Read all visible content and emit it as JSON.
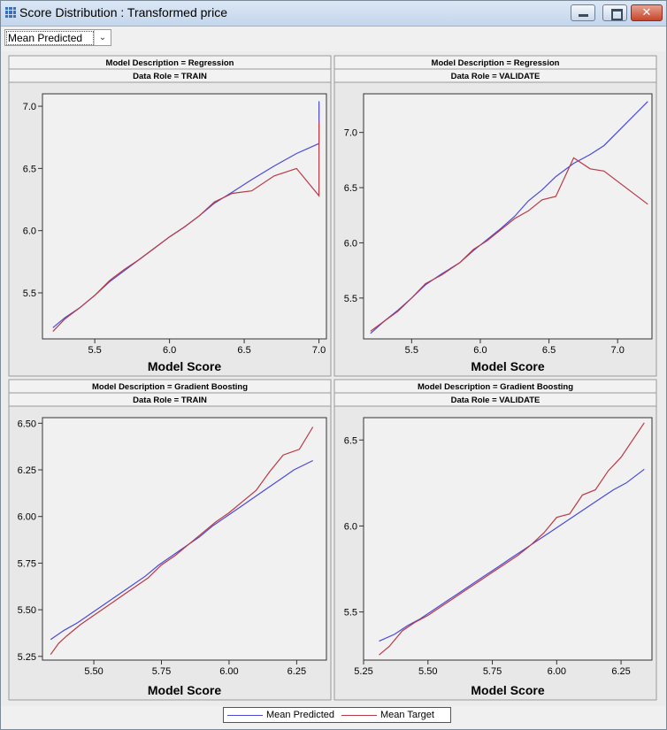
{
  "window": {
    "title": "Score Distribution : Transformed price",
    "close_label": "✕"
  },
  "toolbar": {
    "dropdown_value": "Mean Predicted"
  },
  "colors": {
    "predicted": "#4a4ad6",
    "target": "#b83a46"
  },
  "legend": {
    "predicted_label": "Mean Predicted",
    "target_label": "Mean Target"
  },
  "chart_data": [
    {
      "type": "line",
      "header1": "Model Description = Regression",
      "header2": "Data Role = TRAIN",
      "xlabel": "Model Score",
      "xlim": [
        5.15,
        7.05
      ],
      "ylim": [
        5.13,
        7.1
      ],
      "xticks": [
        "5.5",
        "6.0",
        "6.5",
        "7.0"
      ],
      "yticks": [
        "5.5",
        "6.0",
        "6.5",
        "7.0"
      ],
      "series": [
        {
          "name": "Mean Predicted",
          "points": [
            [
              5.22,
              5.22
            ],
            [
              5.3,
              5.3
            ],
            [
              5.4,
              5.38
            ],
            [
              5.5,
              5.48
            ],
            [
              5.6,
              5.59
            ],
            [
              5.7,
              5.68
            ],
            [
              5.8,
              5.77
            ],
            [
              5.9,
              5.86
            ],
            [
              6.0,
              5.95
            ],
            [
              6.1,
              6.03
            ],
            [
              6.2,
              6.12
            ],
            [
              6.3,
              6.22
            ],
            [
              6.42,
              6.31
            ],
            [
              6.55,
              6.41
            ],
            [
              6.7,
              6.52
            ],
            [
              6.85,
              6.62
            ],
            [
              7.0,
              6.7
            ],
            [
              7.0,
              7.04
            ]
          ]
        },
        {
          "name": "Mean Target",
          "points": [
            [
              5.22,
              5.19
            ],
            [
              5.3,
              5.29
            ],
            [
              5.4,
              5.38
            ],
            [
              5.5,
              5.48
            ],
            [
              5.6,
              5.6
            ],
            [
              5.7,
              5.69
            ],
            [
              5.8,
              5.77
            ],
            [
              5.9,
              5.86
            ],
            [
              6.0,
              5.95
            ],
            [
              6.1,
              6.03
            ],
            [
              6.2,
              6.12
            ],
            [
              6.3,
              6.23
            ],
            [
              6.42,
              6.3
            ],
            [
              6.55,
              6.32
            ],
            [
              6.7,
              6.44
            ],
            [
              6.85,
              6.5
            ],
            [
              7.0,
              6.28
            ],
            [
              7.0,
              6.88
            ]
          ]
        }
      ]
    },
    {
      "type": "line",
      "header1": "Model Description = Regression",
      "header2": "Data Role = VALIDATE",
      "xlabel": "Model Score",
      "xlim": [
        5.15,
        7.25
      ],
      "ylim": [
        5.13,
        7.35
      ],
      "xticks": [
        "5.5",
        "6.0",
        "6.5",
        "7.0"
      ],
      "yticks": [
        "5.5",
        "6.0",
        "6.5",
        "7.0"
      ],
      "series": [
        {
          "name": "Mean Predicted",
          "points": [
            [
              5.2,
              5.18
            ],
            [
              5.3,
              5.29
            ],
            [
              5.4,
              5.39
            ],
            [
              5.5,
              5.5
            ],
            [
              5.6,
              5.62
            ],
            [
              5.72,
              5.72
            ],
            [
              5.85,
              5.82
            ],
            [
              5.95,
              5.93
            ],
            [
              6.05,
              6.03
            ],
            [
              6.15,
              6.13
            ],
            [
              6.25,
              6.24
            ],
            [
              6.35,
              6.38
            ],
            [
              6.45,
              6.48
            ],
            [
              6.55,
              6.6
            ],
            [
              6.68,
              6.72
            ],
            [
              6.8,
              6.8
            ],
            [
              6.9,
              6.88
            ],
            [
              7.22,
              7.28
            ]
          ]
        },
        {
          "name": "Mean Target",
          "points": [
            [
              5.2,
              5.2
            ],
            [
              5.3,
              5.29
            ],
            [
              5.4,
              5.38
            ],
            [
              5.5,
              5.5
            ],
            [
              5.6,
              5.63
            ],
            [
              5.72,
              5.71
            ],
            [
              5.85,
              5.82
            ],
            [
              5.95,
              5.94
            ],
            [
              6.05,
              6.02
            ],
            [
              6.15,
              6.12
            ],
            [
              6.25,
              6.22
            ],
            [
              6.35,
              6.29
            ],
            [
              6.45,
              6.39
            ],
            [
              6.55,
              6.42
            ],
            [
              6.68,
              6.77
            ],
            [
              6.8,
              6.67
            ],
            [
              6.9,
              6.65
            ],
            [
              7.22,
              6.35
            ]
          ]
        }
      ]
    },
    {
      "type": "line",
      "header1": "Model Description = Gradient Boosting",
      "header2": "Data Role = TRAIN",
      "xlabel": "Model Score",
      "xlim": [
        5.31,
        6.36
      ],
      "ylim": [
        5.23,
        6.53
      ],
      "xticks": [
        "5.50",
        "5.75",
        "6.00",
        "6.25"
      ],
      "yticks": [
        "5.25",
        "5.50",
        "5.75",
        "6.00",
        "6.25",
        "6.50"
      ],
      "series": [
        {
          "name": "Mean Predicted",
          "points": [
            [
              5.34,
              5.34
            ],
            [
              5.39,
              5.39
            ],
            [
              5.44,
              5.43
            ],
            [
              5.49,
              5.48
            ],
            [
              5.54,
              5.53
            ],
            [
              5.59,
              5.58
            ],
            [
              5.64,
              5.63
            ],
            [
              5.69,
              5.68
            ],
            [
              5.74,
              5.74
            ],
            [
              5.79,
              5.79
            ],
            [
              5.84,
              5.84
            ],
            [
              5.89,
              5.89
            ],
            [
              5.94,
              5.95
            ],
            [
              5.99,
              6.0
            ],
            [
              6.04,
              6.05
            ],
            [
              6.09,
              6.1
            ],
            [
              6.14,
              6.15
            ],
            [
              6.19,
              6.2
            ],
            [
              6.24,
              6.25
            ],
            [
              6.31,
              6.3
            ]
          ]
        },
        {
          "name": "Mean Target",
          "points": [
            [
              5.34,
              5.26
            ],
            [
              5.37,
              5.32
            ],
            [
              5.4,
              5.36
            ],
            [
              5.45,
              5.42
            ],
            [
              5.5,
              5.47
            ],
            [
              5.55,
              5.52
            ],
            [
              5.6,
              5.57
            ],
            [
              5.65,
              5.62
            ],
            [
              5.7,
              5.67
            ],
            [
              5.75,
              5.74
            ],
            [
              5.8,
              5.79
            ],
            [
              5.85,
              5.85
            ],
            [
              5.9,
              5.91
            ],
            [
              5.95,
              5.97
            ],
            [
              6.0,
              6.02
            ],
            [
              6.05,
              6.08
            ],
            [
              6.1,
              6.14
            ],
            [
              6.15,
              6.24
            ],
            [
              6.2,
              6.33
            ],
            [
              6.26,
              6.36
            ],
            [
              6.31,
              6.48
            ]
          ]
        }
      ]
    },
    {
      "type": "line",
      "header1": "Model Description = Gradient Boosting",
      "header2": "Data Role = VALIDATE",
      "xlabel": "Model Score",
      "xlim": [
        5.25,
        6.37
      ],
      "ylim": [
        5.22,
        6.63
      ],
      "xticks": [
        "5.25",
        "5.50",
        "5.75",
        "6.00",
        "6.25"
      ],
      "yticks": [
        "5.5",
        "6.0",
        "6.5"
      ],
      "series": [
        {
          "name": "Mean Predicted",
          "points": [
            [
              5.31,
              5.33
            ],
            [
              5.37,
              5.37
            ],
            [
              5.42,
              5.42
            ],
            [
              5.47,
              5.46
            ],
            [
              5.52,
              5.51
            ],
            [
              5.57,
              5.56
            ],
            [
              5.62,
              5.61
            ],
            [
              5.67,
              5.66
            ],
            [
              5.72,
              5.71
            ],
            [
              5.77,
              5.76
            ],
            [
              5.82,
              5.81
            ],
            [
              5.87,
              5.86
            ],
            [
              5.92,
              5.91
            ],
            [
              5.97,
              5.96
            ],
            [
              6.02,
              6.01
            ],
            [
              6.07,
              6.06
            ],
            [
              6.12,
              6.11
            ],
            [
              6.17,
              6.16
            ],
            [
              6.22,
              6.21
            ],
            [
              6.27,
              6.25
            ],
            [
              6.34,
              6.33
            ]
          ]
        },
        {
          "name": "Mean Target",
          "points": [
            [
              5.31,
              5.25
            ],
            [
              5.35,
              5.3
            ],
            [
              5.4,
              5.39
            ],
            [
              5.45,
              5.44
            ],
            [
              5.5,
              5.48
            ],
            [
              5.55,
              5.53
            ],
            [
              5.6,
              5.58
            ],
            [
              5.65,
              5.63
            ],
            [
              5.7,
              5.68
            ],
            [
              5.75,
              5.73
            ],
            [
              5.8,
              5.78
            ],
            [
              5.85,
              5.83
            ],
            [
              5.9,
              5.89
            ],
            [
              5.95,
              5.96
            ],
            [
              6.0,
              6.05
            ],
            [
              6.05,
              6.07
            ],
            [
              6.1,
              6.18
            ],
            [
              6.15,
              6.21
            ],
            [
              6.2,
              6.32
            ],
            [
              6.25,
              6.4
            ],
            [
              6.34,
              6.6
            ]
          ]
        }
      ]
    }
  ]
}
